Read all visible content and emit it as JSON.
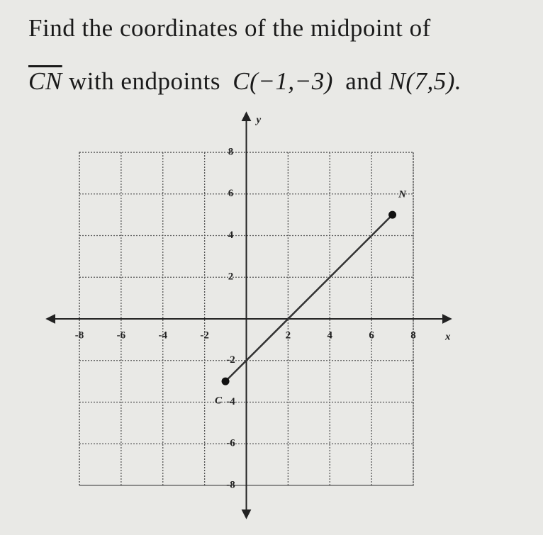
{
  "question": {
    "line1": "Find the coordinates of the midpoint of",
    "segment": "CN",
    "with": "with endpoints",
    "point_c": "C(−1,−3)",
    "and": "and",
    "point_n": "N(7,5)."
  },
  "graph": {
    "x_label": "x",
    "y_label": "y",
    "xlim": [
      -8,
      8
    ],
    "ylim": [
      -8,
      8
    ],
    "xticks": [
      -8,
      -6,
      -4,
      -2,
      2,
      4,
      6,
      8
    ],
    "yticks": [
      8,
      6,
      4,
      2,
      -2,
      -4,
      -6,
      -8
    ],
    "grid": true,
    "points": [
      {
        "label": "C",
        "x": -1,
        "y": -3
      },
      {
        "label": "N",
        "x": 7,
        "y": 5
      }
    ]
  }
}
